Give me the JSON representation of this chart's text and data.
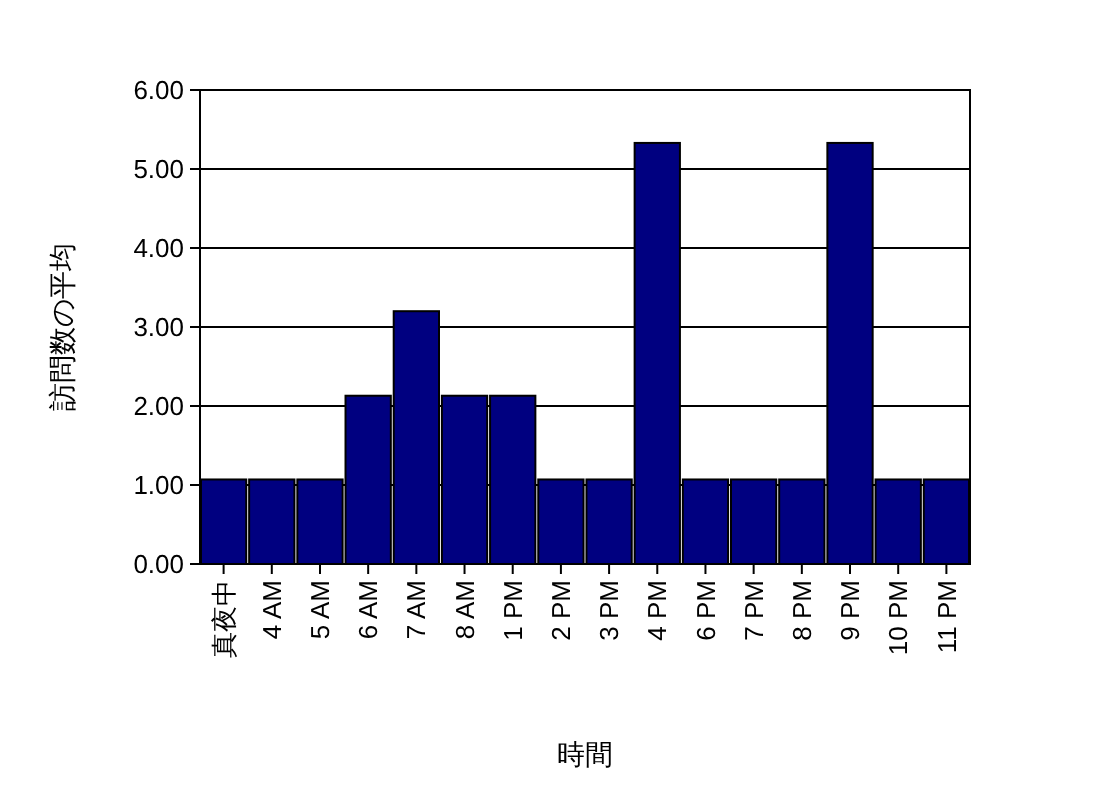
{
  "chart_data": {
    "type": "bar",
    "xlabel": "時間",
    "ylabel": "訪問数の平均",
    "categories": [
      "真夜中",
      "4 AM",
      "5 AM",
      "6 AM",
      "7 AM",
      "8 AM",
      "1 PM",
      "2 PM",
      "3 PM",
      "4 PM",
      "6 PM",
      "7 PM",
      "8 PM",
      "9 PM",
      "10 PM",
      "11 PM"
    ],
    "values": [
      1.07,
      1.07,
      1.07,
      2.13,
      3.2,
      2.13,
      2.13,
      1.07,
      1.07,
      5.33,
      1.07,
      1.07,
      1.07,
      5.33,
      1.07,
      1.07
    ],
    "color": "#000080",
    "ylim": [
      0,
      6
    ],
    "yticks": [
      {
        "value": 0,
        "label": "0.00"
      },
      {
        "value": 1,
        "label": "1.00"
      },
      {
        "value": 2,
        "label": "2.00"
      },
      {
        "value": 3,
        "label": "3.00"
      },
      {
        "value": 4,
        "label": "4.00"
      },
      {
        "value": 5,
        "label": "5.00"
      },
      {
        "value": 6,
        "label": "6.00"
      }
    ],
    "grid": "y"
  }
}
